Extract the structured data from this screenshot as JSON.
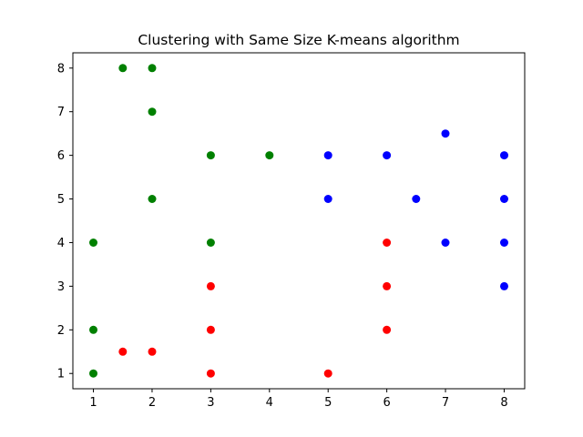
{
  "chart_data": {
    "type": "scatter",
    "title": "Clustering with Same Size K-means algorithm",
    "xlabel": "",
    "ylabel": "",
    "xlim": [
      0.65,
      8.35
    ],
    "ylim": [
      0.65,
      8.35
    ],
    "x_ticks": [
      1,
      2,
      3,
      4,
      5,
      6,
      7,
      8
    ],
    "y_ticks": [
      1,
      2,
      3,
      4,
      5,
      6,
      7,
      8
    ],
    "grid": false,
    "legend": "none",
    "series": [
      {
        "color": "#008000",
        "points": [
          [
            1,
            1
          ],
          [
            1,
            2
          ],
          [
            1,
            4
          ],
          [
            1.5,
            8
          ],
          [
            2,
            8
          ],
          [
            2,
            7
          ],
          [
            2,
            5
          ],
          [
            3,
            6
          ],
          [
            3,
            4
          ],
          [
            4,
            6
          ]
        ]
      },
      {
        "color": "#ff0000",
        "points": [
          [
            1.5,
            1.5
          ],
          [
            2,
            1.5
          ],
          [
            3,
            1
          ],
          [
            3,
            2
          ],
          [
            3,
            3
          ],
          [
            5,
            1
          ],
          [
            6,
            2
          ],
          [
            6,
            3
          ],
          [
            6,
            4
          ]
        ]
      },
      {
        "color": "#0000ff",
        "points": [
          [
            5,
            5
          ],
          [
            5,
            6
          ],
          [
            6,
            6
          ],
          [
            6.5,
            5
          ],
          [
            7,
            6.5
          ],
          [
            7,
            4
          ],
          [
            8,
            3
          ],
          [
            8,
            4
          ],
          [
            8,
            5
          ],
          [
            8,
            6
          ]
        ]
      }
    ]
  }
}
